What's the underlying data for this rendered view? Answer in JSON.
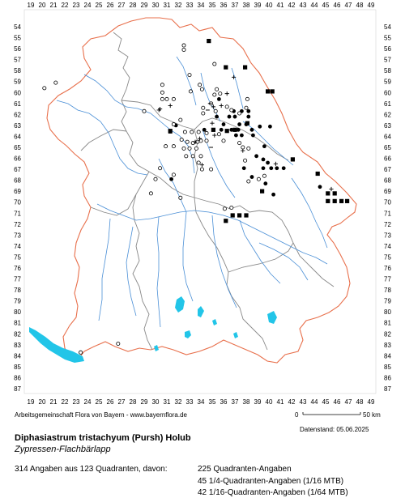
{
  "axes": {
    "x_labels": [
      "19",
      "20",
      "21",
      "22",
      "23",
      "24",
      "25",
      "26",
      "27",
      "28",
      "29",
      "30",
      "31",
      "32",
      "33",
      "34",
      "35",
      "36",
      "37",
      "38",
      "39",
      "40",
      "41",
      "42",
      "43",
      "44",
      "45",
      "46",
      "47",
      "48",
      "49"
    ],
    "y_labels": [
      "54",
      "55",
      "56",
      "57",
      "58",
      "59",
      "60",
      "61",
      "62",
      "63",
      "64",
      "65",
      "66",
      "67",
      "68",
      "69",
      "70",
      "71",
      "72",
      "73",
      "74",
      "75",
      "76",
      "77",
      "78",
      "79",
      "80",
      "81",
      "82",
      "83",
      "84",
      "85",
      "86",
      "87"
    ]
  },
  "scale": {
    "start": "0",
    "end": "50 km"
  },
  "credit": "Arbeitsgemeinschaft Flora von Bayern - www.bayernflora.de",
  "date": "Datenstand: 05.06.2025",
  "species": "Diphasiastrum tristachyum (Pursh) Holub",
  "common_name": "Zypressen-Flachbärlapp",
  "stats": {
    "summary": "314 Angaben aus 123 Quadranten, davon:",
    "lines": [
      "225 Quadranten-Angaben",
      "45 1/4-Quadranten-Angaben (1/16 MTB)",
      "42 1/16-Quadranten-Angaben (1/64 MTB)"
    ]
  },
  "colors": {
    "border": "#777777",
    "outer_border": "#e8704c",
    "rivers": "#4a8fd6",
    "lakes": "#22c5e8"
  },
  "markers": {
    "filled_squares": [
      [
        34.7,
        55.3
      ],
      [
        36.2,
        57.7
      ],
      [
        37.9,
        57.7
      ],
      [
        39.9,
        59.9
      ],
      [
        40.3,
        59.9
      ],
      [
        31.3,
        63.5
      ],
      [
        35.1,
        63.4
      ],
      [
        36.3,
        63.5
      ],
      [
        37.0,
        63.4
      ],
      [
        38.1,
        62.8
      ],
      [
        42.1,
        66.1
      ],
      [
        44.3,
        67.4
      ],
      [
        39.4,
        69.0
      ],
      [
        45.2,
        69.2
      ],
      [
        45.8,
        69.2
      ],
      [
        45.2,
        69.9
      ],
      [
        45.8,
        69.9
      ],
      [
        46.4,
        69.9
      ],
      [
        46.9,
        69.9
      ],
      [
        36.8,
        71.2
      ],
      [
        37.4,
        71.2
      ],
      [
        38.0,
        71.2
      ],
      [
        36.2,
        71.7
      ]
    ],
    "filled_circles": [
      [
        35.6,
        60.6
      ],
      [
        36.9,
        61.7
      ],
      [
        37.6,
        61.7
      ],
      [
        38.2,
        61.7
      ],
      [
        35.4,
        62.2
      ],
      [
        36.5,
        62.2
      ],
      [
        37.0,
        62.2
      ],
      [
        38.2,
        62.2
      ],
      [
        36.0,
        62.9
      ],
      [
        37.4,
        62.9
      ],
      [
        38.0,
        62.9
      ],
      [
        31.8,
        63.0
      ],
      [
        34.3,
        63.4
      ],
      [
        35.8,
        63.4
      ],
      [
        36.7,
        63.4
      ],
      [
        37.3,
        63.4
      ],
      [
        38.5,
        63.4
      ],
      [
        40.1,
        63.1
      ],
      [
        37.1,
        63.9
      ],
      [
        37.6,
        63.9
      ],
      [
        38.6,
        63.9
      ],
      [
        39.2,
        63.1
      ],
      [
        39.6,
        64.9
      ],
      [
        38.9,
        65.8
      ],
      [
        39.5,
        66.1
      ],
      [
        37.8,
        66.9
      ],
      [
        39.5,
        66.9
      ],
      [
        40.2,
        66.9
      ],
      [
        40.7,
        66.9
      ],
      [
        41.3,
        66.9
      ],
      [
        39.9,
        66.4
      ],
      [
        38.5,
        67.7
      ],
      [
        39.7,
        68.3
      ],
      [
        31.4,
        67.9
      ],
      [
        44.5,
        68.6
      ],
      [
        40.4,
        69.3
      ]
    ],
    "open_circles": [
      [
        32.5,
        55.7
      ],
      [
        32.5,
        56.1
      ],
      [
        35.2,
        57.4
      ],
      [
        20.2,
        59.6
      ],
      [
        21.2,
        59.1
      ],
      [
        30.6,
        59.3
      ],
      [
        30.6,
        60.0
      ],
      [
        30.6,
        60.6
      ],
      [
        33.0,
        58.4
      ],
      [
        33.9,
        59.3
      ],
      [
        34.1,
        59.7
      ],
      [
        33.1,
        59.9
      ],
      [
        31.0,
        60.6
      ],
      [
        31.6,
        60.6
      ],
      [
        35.4,
        59.7
      ],
      [
        35.2,
        60.2
      ],
      [
        35.7,
        60.1
      ],
      [
        34.9,
        61.0
      ],
      [
        34.2,
        61.4
      ],
      [
        34.2,
        61.9
      ],
      [
        35.3,
        61.7
      ],
      [
        38.1,
        60.6
      ],
      [
        36.3,
        61.3
      ],
      [
        36.7,
        61.6
      ],
      [
        37.4,
        61.9
      ],
      [
        38.0,
        61.4
      ],
      [
        29.0,
        61.7
      ],
      [
        32.2,
        62.5
      ],
      [
        31.6,
        62.9
      ],
      [
        30.9,
        64.9
      ],
      [
        31.6,
        64.9
      ],
      [
        32.3,
        64.3
      ],
      [
        32.8,
        64.5
      ],
      [
        33.3,
        64.6
      ],
      [
        33.7,
        64.5
      ],
      [
        32.6,
        63.6
      ],
      [
        33.2,
        63.6
      ],
      [
        33.8,
        63.6
      ],
      [
        32.5,
        65.1
      ],
      [
        33.0,
        65.1
      ],
      [
        33.6,
        65.1
      ],
      [
        32.7,
        65.8
      ],
      [
        33.3,
        65.8
      ],
      [
        34.0,
        65.8
      ],
      [
        33.8,
        66.4
      ],
      [
        34.1,
        67.0
      ],
      [
        34.9,
        67.0
      ],
      [
        34.0,
        64.4
      ],
      [
        34.5,
        64.4
      ],
      [
        34.5,
        63.7
      ],
      [
        35.6,
        63.8
      ],
      [
        36.0,
        64.4
      ],
      [
        37.4,
        64.6
      ],
      [
        37.7,
        65.0
      ],
      [
        38.2,
        65.1
      ],
      [
        37.9,
        66.2
      ],
      [
        30.4,
        66.9
      ],
      [
        30.0,
        67.9
      ],
      [
        31.6,
        67.5
      ],
      [
        29.6,
        69.2
      ],
      [
        32.2,
        69.6
      ],
      [
        38.2,
        68.1
      ],
      [
        39.1,
        67.9
      ],
      [
        39.6,
        67.6
      ],
      [
        36.1,
        70.6
      ],
      [
        36.7,
        70.5
      ],
      [
        26.7,
        82.9
      ],
      [
        23.4,
        83.7
      ]
    ],
    "plus_signs": [
      [
        31.3,
        61.2
      ],
      [
        30.3,
        61.6
      ],
      [
        35.1,
        61.3
      ],
      [
        36.3,
        60.1
      ],
      [
        36.9,
        58.6
      ],
      [
        35.0,
        62.8
      ],
      [
        35.2,
        63.9
      ],
      [
        35.8,
        61.2
      ],
      [
        37.7,
        65.3
      ],
      [
        40.6,
        66.5
      ],
      [
        45.5,
        68.8
      ],
      [
        30.4,
        61.5
      ],
      [
        33.5,
        64.5
      ],
      [
        33.9,
        64.2
      ],
      [
        34.1,
        66.6
      ]
    ],
    "minus_signs": [
      [
        31.3,
        63.7
      ],
      [
        34.9,
        65.0
      ],
      [
        34.6,
        61.6
      ],
      [
        34.8,
        61.0
      ]
    ]
  }
}
